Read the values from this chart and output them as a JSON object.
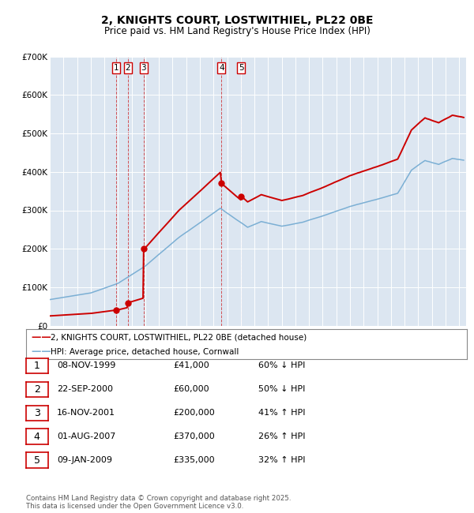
{
  "title": "2, KNIGHTS COURT, LOSTWITHIEL, PL22 0BE",
  "subtitle": "Price paid vs. HM Land Registry's House Price Index (HPI)",
  "legend_line1": "2, KNIGHTS COURT, LOSTWITHIEL, PL22 0BE (detached house)",
  "legend_line2": "HPI: Average price, detached house, Cornwall",
  "footer1": "Contains HM Land Registry data © Crown copyright and database right 2025.",
  "footer2": "This data is licensed under the Open Government Licence v3.0.",
  "transactions": [
    {
      "num": 1,
      "date": "08-NOV-1999",
      "price": 41000,
      "pct": "60%",
      "dir": "↓"
    },
    {
      "num": 2,
      "date": "22-SEP-2000",
      "price": 60000,
      "pct": "50%",
      "dir": "↓"
    },
    {
      "num": 3,
      "date": "16-NOV-2001",
      "price": 200000,
      "pct": "41%",
      "dir": "↑"
    },
    {
      "num": 4,
      "date": "01-AUG-2007",
      "price": 370000,
      "pct": "26%",
      "dir": "↑"
    },
    {
      "num": 5,
      "date": "09-JAN-2009",
      "price": 335000,
      "pct": "32%",
      "dir": "↑"
    }
  ],
  "transaction_dates_decimal": [
    1999.86,
    2000.73,
    2001.88,
    2007.58,
    2009.02
  ],
  "transaction_prices": [
    41000,
    60000,
    200000,
    370000,
    335000
  ],
  "hpi_color": "#7bafd4",
  "price_color": "#cc0000",
  "plot_bg_color": "#dce6f1",
  "ylim": [
    0,
    700000
  ],
  "xlim_start": 1995.0,
  "xlim_end": 2025.5,
  "ylabel_ticks": [
    0,
    100000,
    200000,
    300000,
    400000,
    500000,
    600000,
    700000
  ],
  "ytick_labels": [
    "£0",
    "£100K",
    "£200K",
    "£300K",
    "£400K",
    "£500K",
    "£600K",
    "£700K"
  ]
}
